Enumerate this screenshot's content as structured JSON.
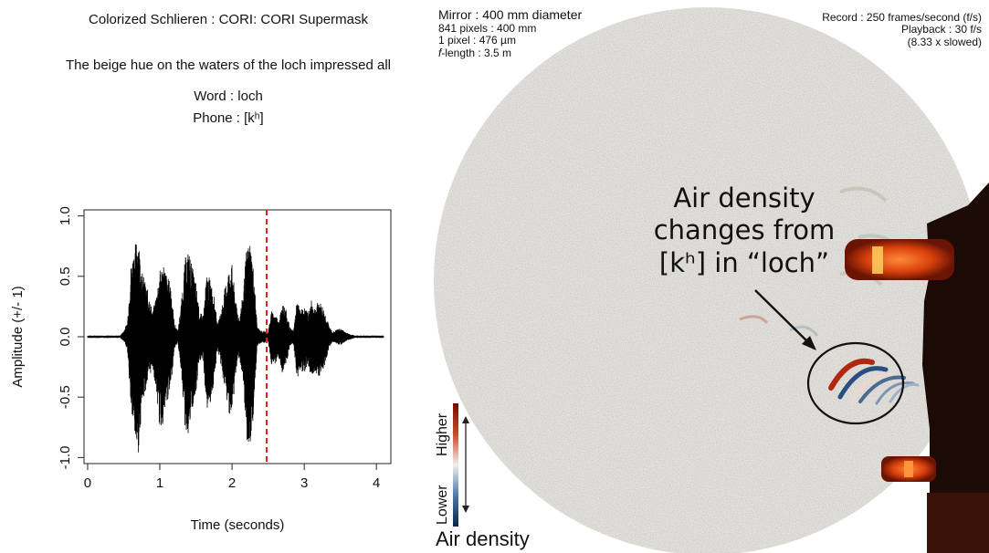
{
  "left_panel": {
    "title": "Colorized Schlieren : CORI: CORI Supermask",
    "sentence": "The beige hue on the waters of the loch impressed all",
    "word": "Word : loch",
    "phone": "Phone : [kʰ]"
  },
  "chart_data": {
    "type": "line",
    "title": "",
    "xlabel": "Time (seconds)",
    "ylabel": "Amplitude (+/- 1)",
    "xlim": [
      -0.05,
      4.2
    ],
    "ylim": [
      -1.05,
      1.05
    ],
    "xticks": [
      0,
      1,
      2,
      3,
      4
    ],
    "yticks": [
      -1.0,
      -0.5,
      0.0,
      0.5,
      1.0
    ],
    "ytick_labels": [
      "-1.0",
      "-0.5",
      "0.0",
      "0.5",
      "1.0"
    ],
    "marker_time": 2.48,
    "marker_color": "#e02020",
    "waveform_color": "#000000",
    "grid": false,
    "envelope": {
      "t": [
        0.0,
        0.45,
        0.5,
        0.55,
        0.6,
        0.65,
        0.7,
        0.75,
        0.8,
        0.85,
        0.9,
        0.95,
        1.0,
        1.05,
        1.1,
        1.15,
        1.2,
        1.25,
        1.3,
        1.35,
        1.4,
        1.45,
        1.5,
        1.55,
        1.6,
        1.65,
        1.7,
        1.75,
        1.8,
        1.85,
        1.9,
        1.95,
        2.0,
        2.05,
        2.1,
        2.15,
        2.2,
        2.25,
        2.3,
        2.35,
        2.4,
        2.45,
        2.5,
        2.55,
        2.6,
        2.65,
        2.7,
        2.75,
        2.8,
        2.85,
        2.9,
        2.95,
        3.0,
        3.05,
        3.1,
        3.15,
        3.2,
        3.25,
        3.3,
        3.35,
        3.4,
        3.45,
        3.5,
        3.55,
        3.6,
        3.65,
        3.7,
        3.75,
        4.1
      ],
      "top": [
        0.01,
        0.01,
        0.05,
        0.12,
        0.6,
        0.75,
        0.86,
        0.55,
        0.45,
        0.35,
        0.2,
        0.35,
        0.55,
        0.62,
        0.5,
        0.45,
        0.12,
        0.05,
        0.3,
        0.65,
        0.72,
        0.58,
        0.45,
        0.2,
        0.18,
        0.52,
        0.48,
        0.35,
        0.1,
        0.22,
        0.4,
        0.55,
        0.6,
        0.3,
        0.15,
        0.35,
        0.72,
        0.8,
        0.55,
        0.08,
        0.05,
        0.05,
        0.04,
        0.22,
        0.18,
        0.15,
        0.28,
        0.22,
        0.08,
        0.05,
        0.3,
        0.22,
        0.25,
        0.2,
        0.3,
        0.24,
        0.3,
        0.26,
        0.18,
        0.08,
        0.04,
        0.06,
        0.07,
        0.05,
        0.03,
        0.02,
        0.01,
        0.01,
        0.01
      ],
      "bottom": [
        0.01,
        0.01,
        0.04,
        0.1,
        0.6,
        0.85,
        0.98,
        0.6,
        0.45,
        0.35,
        0.25,
        0.45,
        0.78,
        0.72,
        0.55,
        0.45,
        0.1,
        0.05,
        0.3,
        0.78,
        0.82,
        0.62,
        0.5,
        0.2,
        0.2,
        0.62,
        0.55,
        0.4,
        0.1,
        0.25,
        0.45,
        0.62,
        0.68,
        0.32,
        0.15,
        0.4,
        0.85,
        0.98,
        0.62,
        0.08,
        0.05,
        0.05,
        0.04,
        0.25,
        0.22,
        0.18,
        0.32,
        0.25,
        0.08,
        0.06,
        0.35,
        0.28,
        0.3,
        0.22,
        0.35,
        0.28,
        0.33,
        0.3,
        0.2,
        0.08,
        0.04,
        0.06,
        0.07,
        0.05,
        0.03,
        0.02,
        0.01,
        0.01,
        0.01
      ]
    }
  },
  "schlieren": {
    "mirror": "Mirror :  400 mm diameter",
    "pixels": "841 pixels : 400 mm",
    "pixel_size": "1 pixel : 476 µm",
    "f_length_symbol": "f",
    "f_length": "-length : 3.5 m",
    "record": "Record : 250 frames/second (f/s)",
    "playback": "Playback : 30 f/s",
    "slowed": "(8.33 x slowed)",
    "callout_line1": "Air density",
    "callout_line2": "changes from",
    "callout_line3": "[kʰ] in “loch”",
    "legend_higher": "Higher",
    "legend_lower": "Lower",
    "legend_title": "Air density",
    "colors": {
      "high": "#7a0a00",
      "mid": "#f2f0ec",
      "low": "#0c2448",
      "disk": "#dedad4",
      "device": "#1a0806",
      "device_glow": "#e04810"
    }
  }
}
